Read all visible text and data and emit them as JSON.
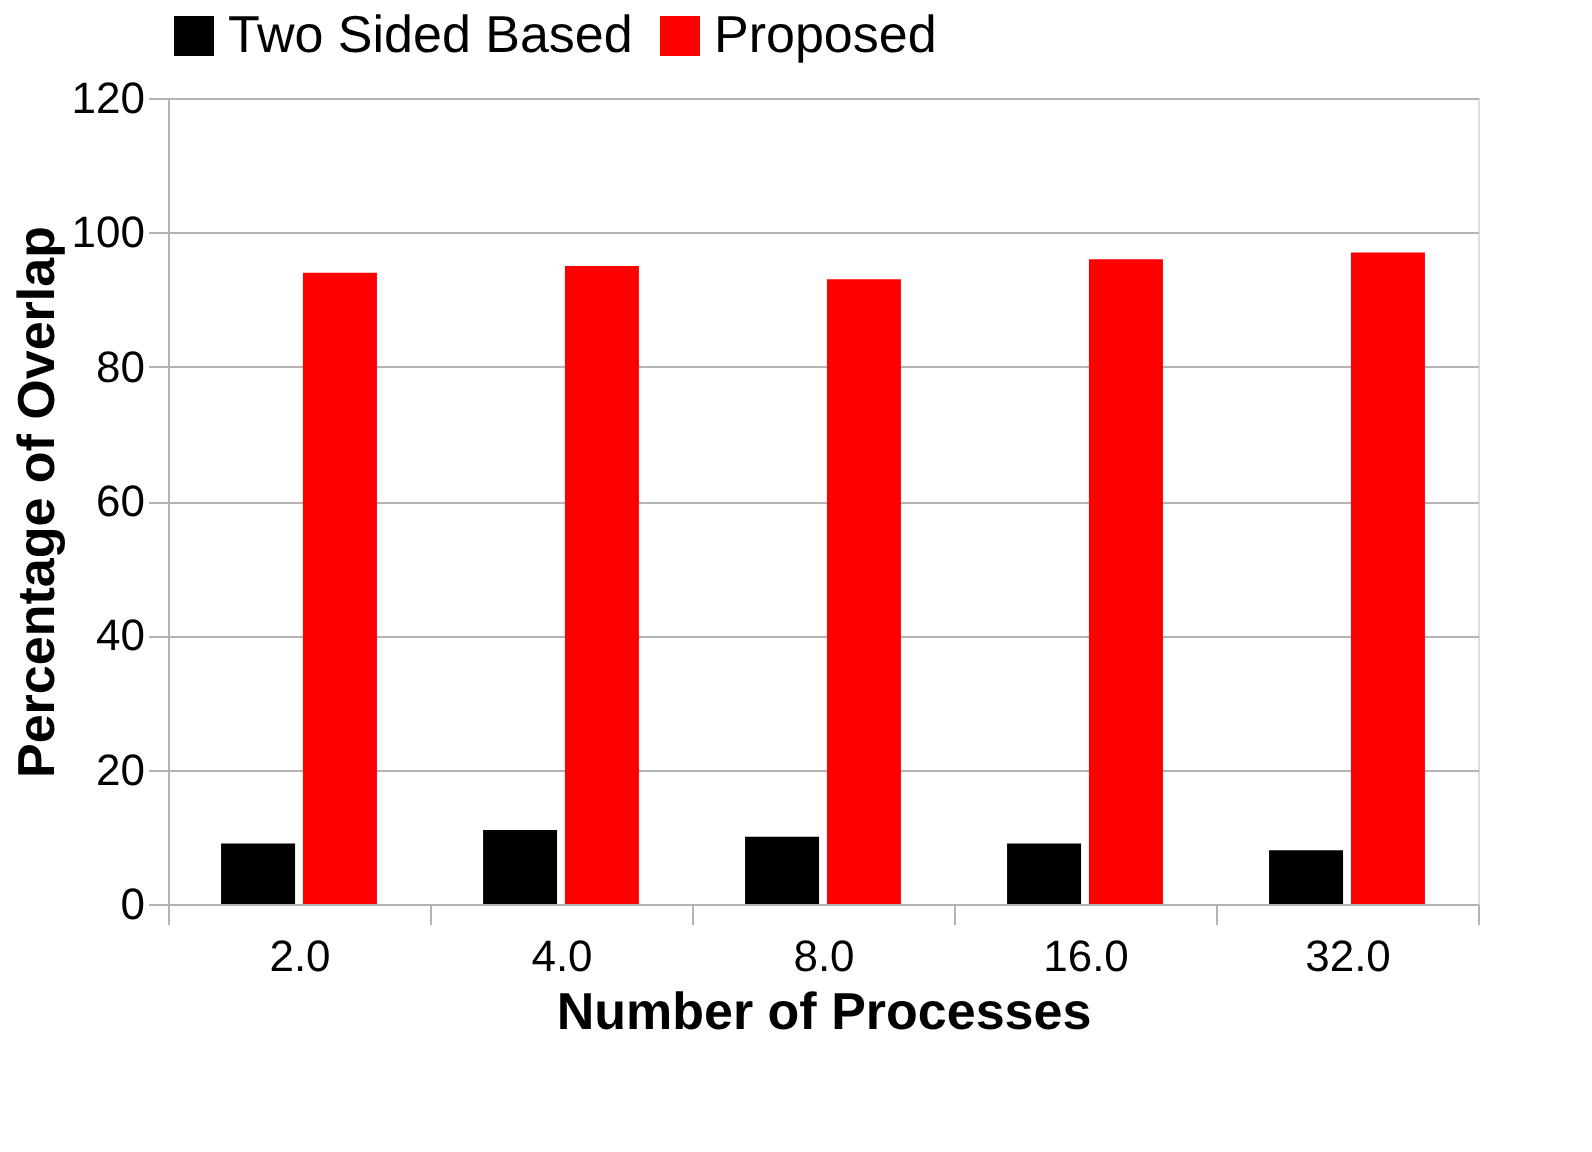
{
  "chart_data": {
    "type": "bar",
    "xlabel": "Number of Processes",
    "ylabel": "Percentage of Overlap",
    "categories": [
      "2.0",
      "4.0",
      "8.0",
      "16.0",
      "32.0"
    ],
    "series": [
      {
        "name": "Two Sided Based",
        "color": "#000000",
        "values": [
          9,
          11,
          10,
          9,
          8
        ]
      },
      {
        "name": "Proposed",
        "color": "#ff0000",
        "values": [
          94,
          95,
          93,
          96,
          97
        ]
      }
    ],
    "ylim": [
      0,
      120
    ],
    "yticks": [
      0,
      20,
      40,
      60,
      80,
      100,
      120
    ],
    "grid": "y",
    "legend": "top"
  }
}
